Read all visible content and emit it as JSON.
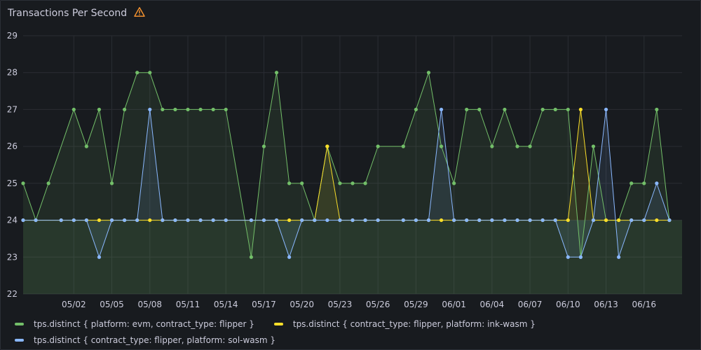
{
  "panel": {
    "title": "Transactions Per Second"
  },
  "chart_data": {
    "type": "line",
    "ylim": [
      22,
      29
    ],
    "yticks": [
      22,
      23,
      24,
      25,
      26,
      27,
      28,
      29
    ],
    "xlim": [
      "04/28",
      "06/19"
    ],
    "xticks": [
      "05/02",
      "05/05",
      "05/08",
      "05/11",
      "05/14",
      "05/17",
      "05/20",
      "05/23",
      "05/26",
      "05/29",
      "06/01",
      "06/04",
      "06/07",
      "06/10",
      "06/13",
      "06/16"
    ],
    "fill_baseline": 24,
    "grid": true,
    "legend_position": "bottom",
    "series": [
      {
        "name": "tps.distinct { platform: evm, contract_type: flipper }",
        "color": "#73bf69",
        "points": [
          [
            "04/28",
            25
          ],
          [
            "04/29",
            24
          ],
          [
            "04/30",
            25
          ],
          [
            "05/02",
            27
          ],
          [
            "05/03",
            26
          ],
          [
            "05/04",
            27
          ],
          [
            "05/05",
            25
          ],
          [
            "05/06",
            27
          ],
          [
            "05/07",
            28
          ],
          [
            "05/08",
            28
          ],
          [
            "05/09",
            27
          ],
          [
            "05/10",
            27
          ],
          [
            "05/11",
            27
          ],
          [
            "05/12",
            27
          ],
          [
            "05/13",
            27
          ],
          [
            "05/14",
            27
          ],
          [
            "05/16",
            23
          ],
          [
            "05/17",
            26
          ],
          [
            "05/18",
            28
          ],
          [
            "05/19",
            25
          ],
          [
            "05/20",
            25
          ],
          [
            "05/21",
            24
          ],
          [
            "05/22",
            26
          ],
          [
            "05/23",
            25
          ],
          [
            "05/24",
            25
          ],
          [
            "05/25",
            25
          ],
          [
            "05/26",
            26
          ],
          [
            "05/28",
            26
          ],
          [
            "05/29",
            27
          ],
          [
            "05/30",
            28
          ],
          [
            "05/31",
            26
          ],
          [
            "06/01",
            25
          ],
          [
            "06/02",
            27
          ],
          [
            "06/03",
            27
          ],
          [
            "06/04",
            26
          ],
          [
            "06/05",
            27
          ],
          [
            "06/06",
            26
          ],
          [
            "06/07",
            26
          ],
          [
            "06/08",
            27
          ],
          [
            "06/09",
            27
          ],
          [
            "06/10",
            27
          ],
          [
            "06/11",
            23
          ],
          [
            "06/12",
            26
          ],
          [
            "06/13",
            24
          ],
          [
            "06/14",
            24
          ],
          [
            "06/15",
            25
          ],
          [
            "06/16",
            25
          ],
          [
            "06/17",
            27
          ],
          [
            "06/18",
            24
          ]
        ]
      },
      {
        "name": "tps.distinct { contract_type: flipper, platform: ink-wasm }",
        "color": "#fade2a",
        "points": [
          [
            "04/28",
            24
          ],
          [
            "04/29",
            24
          ],
          [
            "05/01",
            24
          ],
          [
            "05/02",
            24
          ],
          [
            "05/03",
            24
          ],
          [
            "05/04",
            24
          ],
          [
            "05/05",
            24
          ],
          [
            "05/06",
            24
          ],
          [
            "05/07",
            24
          ],
          [
            "05/08",
            24
          ],
          [
            "05/09",
            24
          ],
          [
            "05/10",
            24
          ],
          [
            "05/11",
            24
          ],
          [
            "05/12",
            24
          ],
          [
            "05/13",
            24
          ],
          [
            "05/14",
            24
          ],
          [
            "05/16",
            24
          ],
          [
            "05/17",
            24
          ],
          [
            "05/18",
            24
          ],
          [
            "05/19",
            24
          ],
          [
            "05/20",
            24
          ],
          [
            "05/21",
            24
          ],
          [
            "05/22",
            26
          ],
          [
            "05/23",
            24
          ],
          [
            "05/24",
            24
          ],
          [
            "05/25",
            24
          ],
          [
            "05/26",
            24
          ],
          [
            "05/28",
            24
          ],
          [
            "05/29",
            24
          ],
          [
            "05/30",
            24
          ],
          [
            "05/31",
            24
          ],
          [
            "06/01",
            24
          ],
          [
            "06/02",
            24
          ],
          [
            "06/03",
            24
          ],
          [
            "06/04",
            24
          ],
          [
            "06/05",
            24
          ],
          [
            "06/06",
            24
          ],
          [
            "06/07",
            24
          ],
          [
            "06/08",
            24
          ],
          [
            "06/09",
            24
          ],
          [
            "06/10",
            24
          ],
          [
            "06/11",
            27
          ],
          [
            "06/12",
            24
          ],
          [
            "06/13",
            24
          ],
          [
            "06/14",
            24
          ],
          [
            "06/15",
            24
          ],
          [
            "06/16",
            24
          ],
          [
            "06/17",
            24
          ],
          [
            "06/18",
            24
          ]
        ]
      },
      {
        "name": "tps.distinct { contract_type: flipper, platform: sol-wasm }",
        "color": "#8ab8ff",
        "points": [
          [
            "04/28",
            24
          ],
          [
            "04/29",
            24
          ],
          [
            "05/01",
            24
          ],
          [
            "05/02",
            24
          ],
          [
            "05/03",
            24
          ],
          [
            "05/04",
            23
          ],
          [
            "05/05",
            24
          ],
          [
            "05/06",
            24
          ],
          [
            "05/07",
            24
          ],
          [
            "05/08",
            27
          ],
          [
            "05/09",
            24
          ],
          [
            "05/10",
            24
          ],
          [
            "05/11",
            24
          ],
          [
            "05/12",
            24
          ],
          [
            "05/13",
            24
          ],
          [
            "05/14",
            24
          ],
          [
            "05/16",
            24
          ],
          [
            "05/17",
            24
          ],
          [
            "05/18",
            24
          ],
          [
            "05/19",
            23
          ],
          [
            "05/20",
            24
          ],
          [
            "05/21",
            24
          ],
          [
            "05/22",
            24
          ],
          [
            "05/23",
            24
          ],
          [
            "05/24",
            24
          ],
          [
            "05/25",
            24
          ],
          [
            "05/26",
            24
          ],
          [
            "05/28",
            24
          ],
          [
            "05/29",
            24
          ],
          [
            "05/30",
            24
          ],
          [
            "05/31",
            27
          ],
          [
            "06/01",
            24
          ],
          [
            "06/02",
            24
          ],
          [
            "06/03",
            24
          ],
          [
            "06/04",
            24
          ],
          [
            "06/05",
            24
          ],
          [
            "06/06",
            24
          ],
          [
            "06/07",
            24
          ],
          [
            "06/08",
            24
          ],
          [
            "06/09",
            24
          ],
          [
            "06/10",
            23
          ],
          [
            "06/11",
            23
          ],
          [
            "06/12",
            24
          ],
          [
            "06/13",
            27
          ],
          [
            "06/14",
            23
          ],
          [
            "06/15",
            24
          ],
          [
            "06/16",
            24
          ],
          [
            "06/17",
            25
          ],
          [
            "06/18",
            24
          ]
        ]
      }
    ]
  }
}
